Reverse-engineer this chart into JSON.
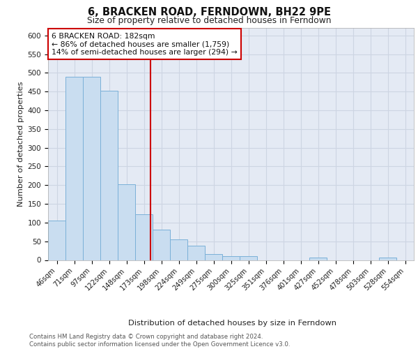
{
  "title": "6, BRACKEN ROAD, FERNDOWN, BH22 9PE",
  "subtitle": "Size of property relative to detached houses in Ferndown",
  "xlabel": "Distribution of detached houses by size in Ferndown",
  "ylabel": "Number of detached properties",
  "categories": [
    "46sqm",
    "71sqm",
    "97sqm",
    "122sqm",
    "148sqm",
    "173sqm",
    "198sqm",
    "224sqm",
    "249sqm",
    "275sqm",
    "300sqm",
    "325sqm",
    "351sqm",
    "376sqm",
    "401sqm",
    "427sqm",
    "452sqm",
    "478sqm",
    "503sqm",
    "528sqm",
    "554sqm"
  ],
  "values": [
    105,
    490,
    490,
    453,
    202,
    122,
    82,
    55,
    38,
    15,
    10,
    10,
    0,
    0,
    0,
    6,
    0,
    0,
    0,
    6,
    0
  ],
  "bar_color": "#c9ddf0",
  "bar_edge_color": "#7ab0d8",
  "grid_color": "#cdd5e2",
  "background_color": "#e4eaf4",
  "vline_color": "#cc0000",
  "annotation_text": "6 BRACKEN ROAD: 182sqm\n← 86% of detached houses are smaller (1,759)\n14% of semi-detached houses are larger (294) →",
  "annotation_box_color": "#ffffff",
  "annotation_box_edge": "#cc0000",
  "footer_text": "Contains HM Land Registry data © Crown copyright and database right 2024.\nContains public sector information licensed under the Open Government Licence v3.0.",
  "ylim": [
    0,
    620
  ],
  "yticks": [
    0,
    50,
    100,
    150,
    200,
    250,
    300,
    350,
    400,
    450,
    500,
    550,
    600
  ]
}
